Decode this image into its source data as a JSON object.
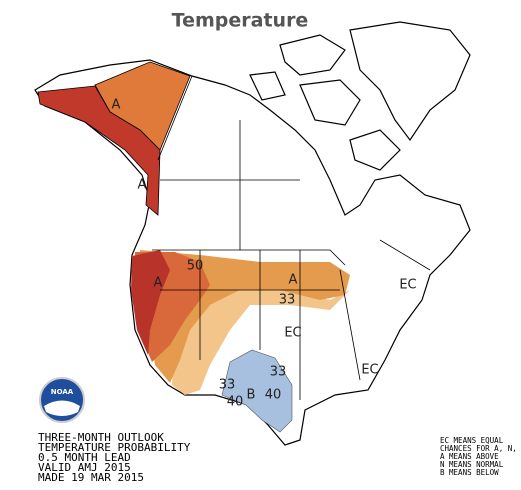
{
  "title": "Temperature",
  "map_labels": [
    "A",
    "A",
    "A",
    "50",
    "A",
    "33",
    "EC",
    "EC",
    "EC",
    "33",
    "33",
    "B",
    "40",
    "40"
  ],
  "caption": [
    "THREE-MONTH OUTLOOK",
    "TEMPERATURE PROBABILITY",
    "0.5 MONTH LEAD",
    "VALID AMJ 2015",
    "MADE 19 MAR 2015"
  ],
  "legend": [
    "EC MEANS EQUAL",
    "CHANCES FOR A, N, B",
    "A MEANS ABOVE",
    "N MEANS NORMAL",
    "B MEANS BELOW"
  ],
  "logo": "NOAA"
}
